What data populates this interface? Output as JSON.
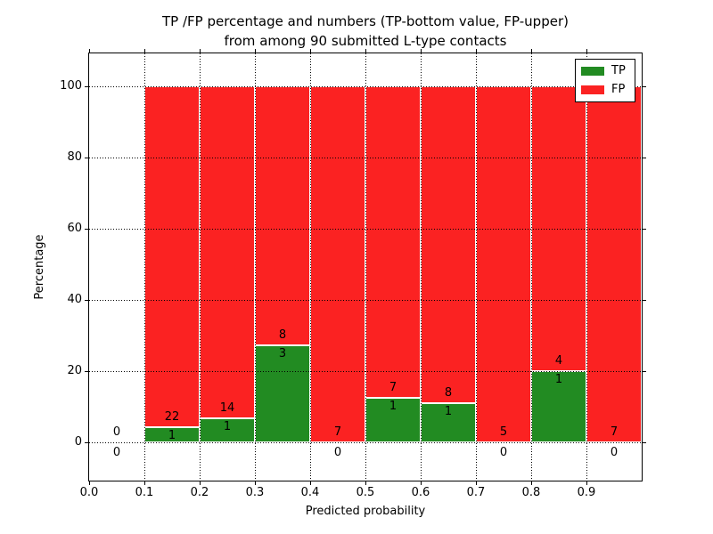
{
  "chart_data": {
    "type": "bar",
    "stacked": true,
    "title_line1": "TP /FP percentage and numbers (TP-bottom value, FP-upper)",
    "title_line2": "from among 90 submitted L-type contacts",
    "xlabel": "Predicted probability",
    "ylabel": "Percentage",
    "submitted_total": 90,
    "xlim": [
      0.0,
      1.0
    ],
    "ylim": [
      -10.75,
      109.25
    ],
    "x_ticks": [
      "0.0",
      "0.1",
      "0.2",
      "0.3",
      "0.4",
      "0.5",
      "0.6",
      "0.7",
      "0.8",
      "0.9"
    ],
    "y_ticks": [
      "0",
      "20",
      "40",
      "60",
      "80",
      "100"
    ],
    "grid": true,
    "grid_style": "dotted",
    "colors": {
      "tp": "#228B22",
      "fp": "#FB2222",
      "bar_edge": "#ffffff",
      "text": "#000000"
    },
    "legend": {
      "position": "upper right",
      "entries": [
        {
          "label": "TP",
          "color": "#228B22"
        },
        {
          "label": "FP",
          "color": "#FB2222"
        }
      ]
    },
    "bins": [
      {
        "range": [
          0.0,
          0.1
        ],
        "tp_count": 0,
        "fp_count": 0,
        "tp_pct": 0,
        "fp_pct": 0
      },
      {
        "range": [
          0.1,
          0.2
        ],
        "tp_count": 1,
        "fp_count": 22,
        "tp_pct": 4.35,
        "fp_pct": 95.65
      },
      {
        "range": [
          0.2,
          0.3
        ],
        "tp_count": 1,
        "fp_count": 14,
        "tp_pct": 6.67,
        "fp_pct": 93.33
      },
      {
        "range": [
          0.3,
          0.4
        ],
        "tp_count": 3,
        "fp_count": 8,
        "tp_pct": 27.27,
        "fp_pct": 72.73
      },
      {
        "range": [
          0.4,
          0.5
        ],
        "tp_count": 0,
        "fp_count": 7,
        "tp_pct": 0,
        "fp_pct": 100
      },
      {
        "range": [
          0.5,
          0.6
        ],
        "tp_count": 1,
        "fp_count": 7,
        "tp_pct": 12.5,
        "fp_pct": 87.5
      },
      {
        "range": [
          0.6,
          0.7
        ],
        "tp_count": 1,
        "fp_count": 8,
        "tp_pct": 11.11,
        "fp_pct": 88.89
      },
      {
        "range": [
          0.7,
          0.8
        ],
        "tp_count": 0,
        "fp_count": 5,
        "tp_pct": 0,
        "fp_pct": 100
      },
      {
        "range": [
          0.8,
          0.9
        ],
        "tp_count": 1,
        "fp_count": 4,
        "tp_pct": 20,
        "fp_pct": 80
      },
      {
        "range": [
          0.9,
          1.0
        ],
        "tp_count": 0,
        "fp_count": 7,
        "tp_pct": 0,
        "fp_pct": 100
      }
    ]
  }
}
